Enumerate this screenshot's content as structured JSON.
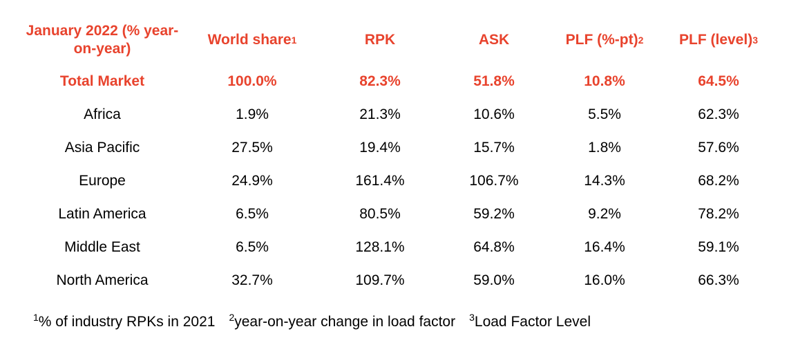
{
  "chart_data": {
    "type": "table",
    "columns": [
      "January 2022 (% year-on-year)",
      "World share",
      "RPK",
      "ASK",
      "PLF (%-pt)",
      "PLF (level)"
    ],
    "column_superscripts": [
      "",
      "1",
      "",
      "",
      "2",
      "3"
    ],
    "rows": [
      [
        "Total Market",
        "100.0%",
        "82.3%",
        "51.8%",
        "10.8%",
        "64.5%"
      ],
      [
        "Africa",
        "1.9%",
        "21.3%",
        "10.6%",
        "5.5%",
        "62.3%"
      ],
      [
        "Asia Pacific",
        "27.5%",
        "19.4%",
        "15.7%",
        "1.8%",
        "57.6%"
      ],
      [
        "Europe",
        "24.9%",
        "161.4%",
        "106.7%",
        "14.3%",
        "68.2%"
      ],
      [
        "Latin America",
        "6.5%",
        "80.5%",
        "59.2%",
        "9.2%",
        "78.2%"
      ],
      [
        "Middle East",
        "6.5%",
        "128.1%",
        "64.8%",
        "16.4%",
        "59.1%"
      ],
      [
        "North America",
        "32.7%",
        "109.7%",
        "59.0%",
        "16.0%",
        "66.3%"
      ]
    ],
    "footnotes": [
      {
        "mark": "1",
        "text": "% of industry RPKs in 2021"
      },
      {
        "mark": "2",
        "text": "year-on-year change in load factor"
      },
      {
        "mark": "3",
        "text": "Load Factor Level"
      }
    ],
    "colors": {
      "accent": "#e8432d",
      "text": "#000000"
    }
  }
}
